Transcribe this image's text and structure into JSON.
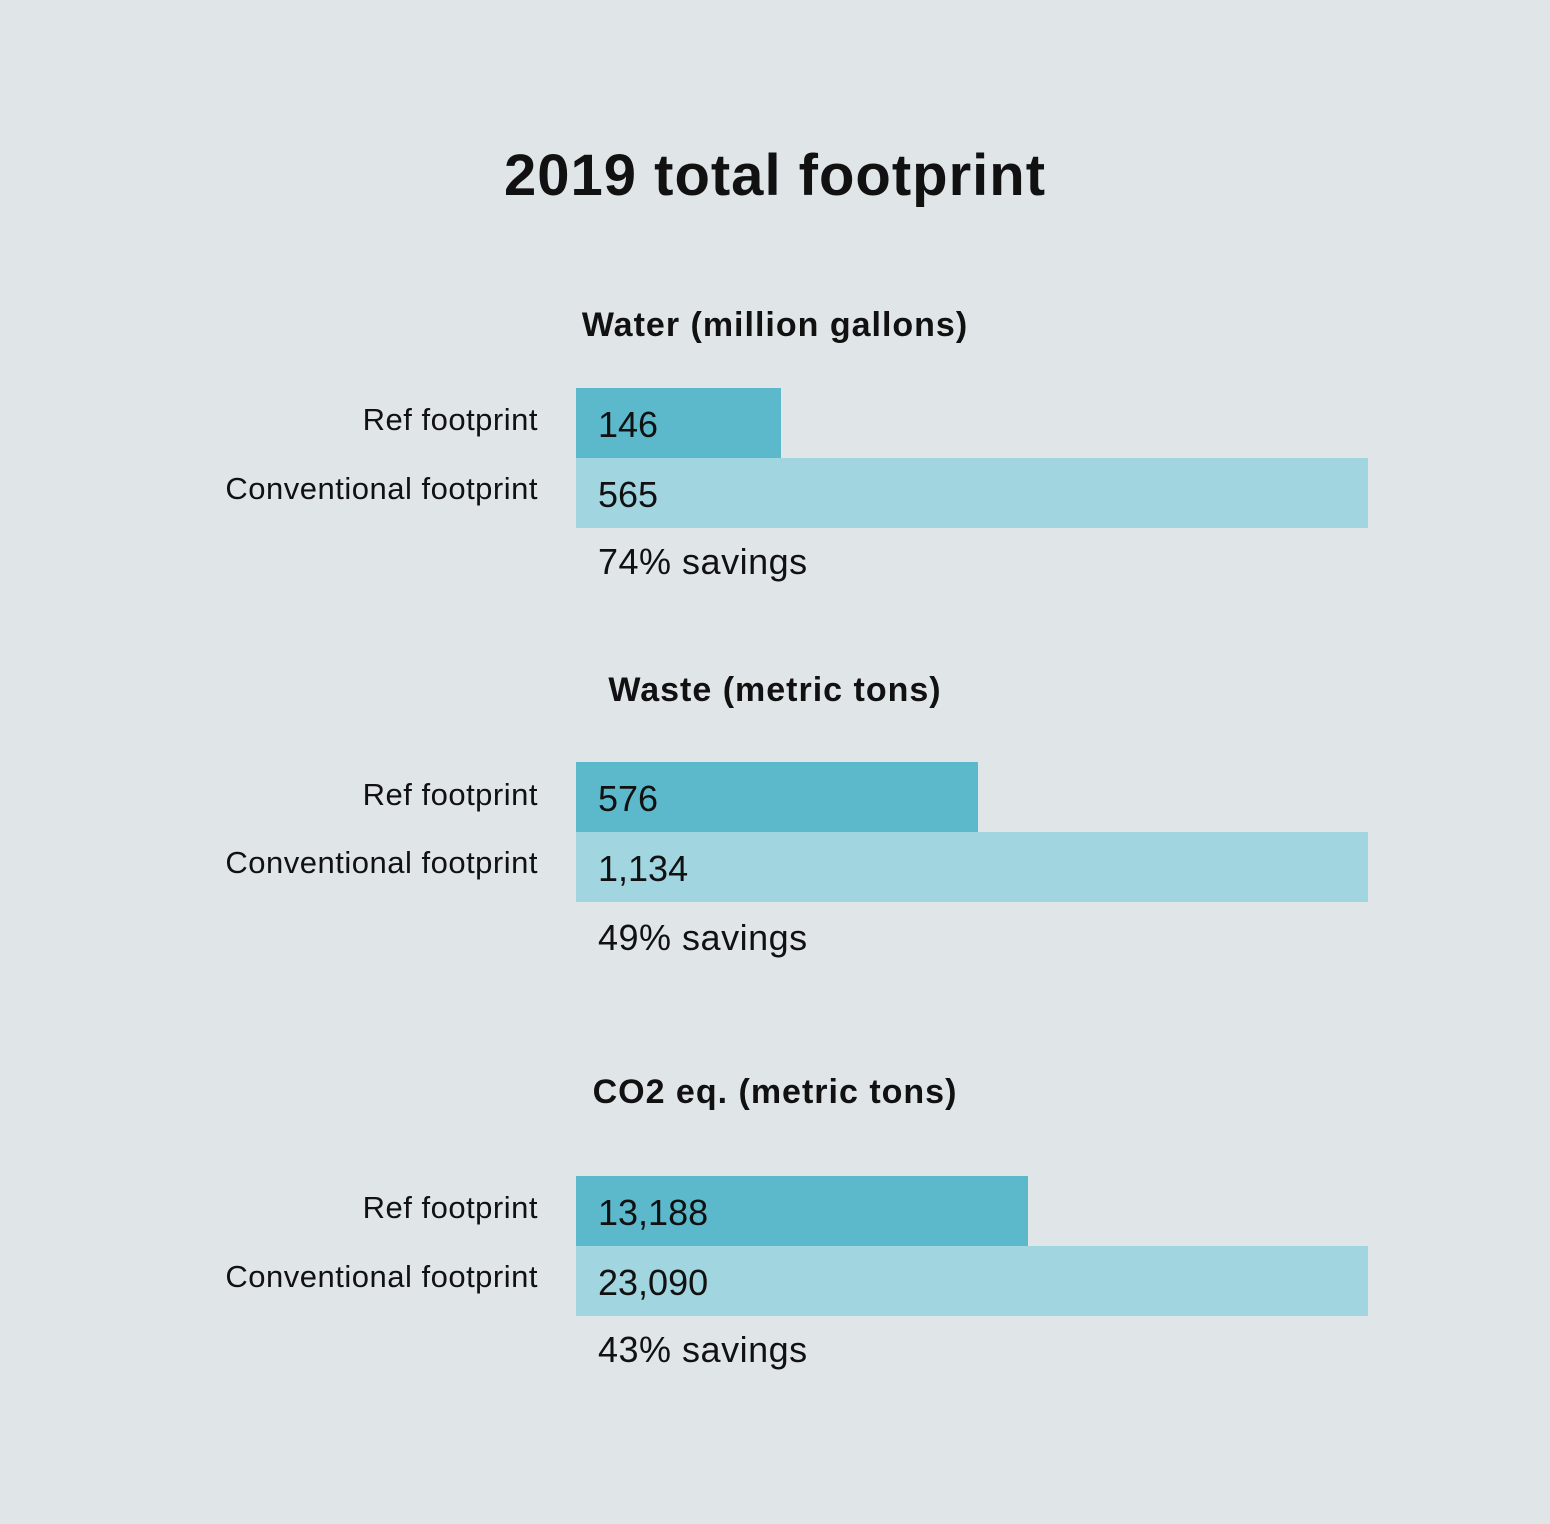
{
  "chart_data": {
    "type": "bar",
    "title": "2019 total footprint",
    "orientation": "horizontal",
    "colors": {
      "background": "#e0e5e8",
      "ref_bar": "#5bb9cb",
      "conventional_bar": "#a1d6e0"
    },
    "panels": [
      {
        "title": "Water (million gallons)",
        "categories": [
          "Ref footprint",
          "Conventional footprint"
        ],
        "values": [
          146,
          565
        ],
        "value_labels": [
          "146",
          "565"
        ],
        "savings": "74% savings"
      },
      {
        "title": "Waste (metric tons)",
        "categories": [
          "Ref footprint",
          "Conventional footprint"
        ],
        "values": [
          576,
          1134
        ],
        "value_labels": [
          "576",
          "1,134"
        ],
        "savings": "49% savings"
      },
      {
        "title": "CO2 eq. (metric tons)",
        "categories": [
          "Ref footprint",
          "Conventional footprint"
        ],
        "values": [
          13188,
          23090
        ],
        "value_labels": [
          "13,188",
          "23,090"
        ],
        "savings": "43% savings"
      }
    ]
  }
}
